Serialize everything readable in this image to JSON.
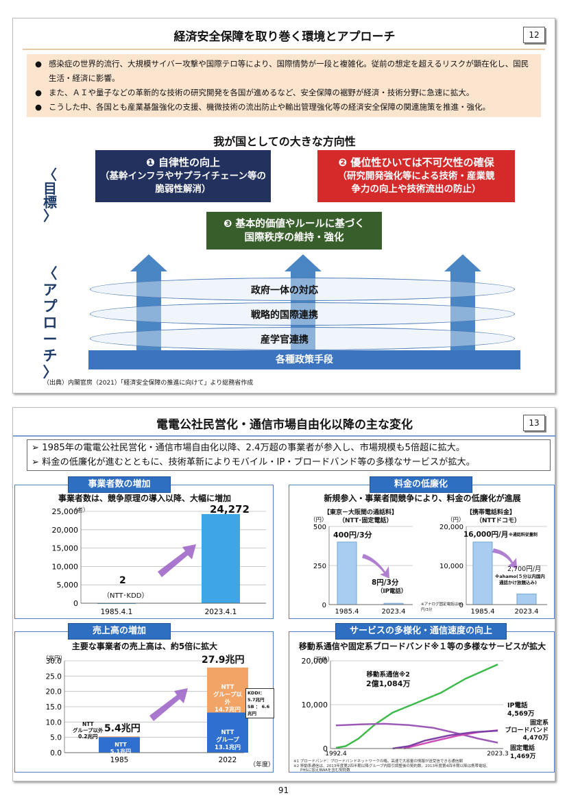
{
  "slide12": {
    "title": "経済安全保障を取り巻く環境とアプローチ",
    "page": "12",
    "bullets": [
      "感染症の世界的流行、大規模サイバー攻撃や国際テロ等により、国際情勢が一段と複雑化。従前の想定を超えるリスクが顕在化し、国民生活・経済に影響。",
      "また、ＡＩや量子などの革新的な技術の研究開発を各国が進めるなど、安全保障の裾野が経済・技術分野に急速に拡大。",
      "こうした中、各国とも産業基盤強化の支援、機微技術の流出防止や輸出管理強化等の経済安全保障の関連施策を推進・強化。"
    ],
    "direction": "我が国としての大きな方向性",
    "goal_label": "〈目標〉",
    "approach_label": "〈アプローチ〉",
    "goal1": [
      "❶ 自律性の向上",
      "（基幹インフラやサプライチェーン等の",
      "脆弱性解消）"
    ],
    "goal2": [
      "❷ 優位性ひいては不可欠性の確保",
      "（研究開発強化等による技術・産業競",
      "争力の向上や技術流出の防止）"
    ],
    "goal3": [
      "❸ 基本的価値やルールに基づく",
      "国際秩序の維持・強化"
    ],
    "appr1": "政府一体の対応",
    "appr2": "戦略的国際連携",
    "appr3": "産学官連携",
    "base": "各種政策手段",
    "source": "（出典）内閣官房（2021）「経済安全保障の推進に向けて」より総務省作成",
    "colors": {
      "navy": "#22315e",
      "red": "#d42a2a",
      "green": "#385f2b",
      "blue": "#3d74c0"
    }
  },
  "slide13": {
    "title": "電電公社民営化・通信市場自由化以降の主な変化",
    "page": "13",
    "bullets": [
      "➢  1985年の電電公社民営化・通信市場自由化以降、2.4万超の事業者が参入し、市場規模も5倍超に拡大。",
      "➢  料金の低廉化が進むとともに、技術革新によりモバイル・IP・ブロードバンド等の多様なサービスが拡大。"
    ],
    "p1": {
      "head": "事業者数の増加",
      "sub": "事業者数は、競争原理の導入以降、大幅に増加",
      "unit": "（者）",
      "v1": "2",
      "v1note": "（NTT･KDD）",
      "v2": "24,272"
    },
    "p2": {
      "head": "料金の低廉化",
      "sub": "新規参入・事業者間競争により、料金の低廉化が進展",
      "c1title": "【東京－大阪間の通話料】",
      "c1sub": "（NTT･固定電話）",
      "c1unit": "（円）",
      "c1v1": "400円/3分",
      "c1v2": "8円/3分",
      "c1v2note": "（IP電話）",
      "c2title": "【携帯電話料金】",
      "c2sub": "（NTTドコモ）",
      "c2unit": "（円）",
      "c2v1": "16,000円/月",
      "c2v1note": "※通話料従量制",
      "c2v2": "2,700円/月",
      "c2v2note1": "※ahamo(５分以内国内",
      "c2v2note2": "通話かけ放題込み)",
      "note": "※アナログ固定電話は80円/3分"
    },
    "p3": {
      "head": "売上高の増加",
      "sub": "主要な事業者の売上高は、約5倍に拡大",
      "unit": "（兆円）",
      "total1": "5.4兆円",
      "total2": "27.9兆円",
      "n1a": "NTT",
      "n1b": "5.1兆円",
      "o1a": "NTT",
      "o1b": "グループ以外",
      "o1c": "0.2兆円",
      "n2a": "NTT",
      "n2b": "グループ",
      "n2c": "13.1兆円",
      "o2a": "NTT",
      "o2b": "グループ以外",
      "o2c": "14.7兆円",
      "kddi": "KDDI： 5.7兆円",
      "sb": "SB ： 6.6兆円",
      "year": "（年度）"
    },
    "p4": {
      "head": "サービスの多様化・通信速度の向上",
      "sub": "移動系通信や固定系ブロードバンド※１等の多様なサービスが拡大",
      "unit": "（万件）",
      "mobile": "移動系通信※2",
      "mobile2": "2億1,084万",
      "ip": "IP電話",
      "ip2": "4,569万",
      "bb": "固定系",
      "bb2": "ブロードバンド",
      "bb3": "4,470万",
      "fixed": "固定電話",
      "fixed2": "1,469万",
      "fn1": "※1 ブロードバンド：ブロードバンドネットワークの略。高速で大容量の情報が送受信できる通信網",
      "fn2": "※2 移動系通信は、2013年度第2四半期以降グループ内取引調整後の契約数。2013年度第4四半期以降は携帯電話、",
      "fn3": "PHSに加えBWAを含む契約数"
    },
    "page_footer": "91"
  },
  "chart_data": [
    {
      "type": "bar",
      "title": "事業者数の増加",
      "categories": [
        "1985.4.1",
        "2023.4.1"
      ],
      "values": [
        2,
        24272
      ],
      "ylim": [
        0,
        25000
      ],
      "yticks": [
        "25,000",
        "20,000",
        "15,000",
        "10,000",
        "5,000",
        "0"
      ],
      "ylabel": "（者）"
    },
    {
      "type": "bar",
      "title": "【東京－大阪間の通話料】",
      "categories": [
        "1985.4",
        "2023.4"
      ],
      "values": [
        400,
        8
      ],
      "ylim": [
        0,
        500
      ],
      "yticks": [
        "500",
        "250",
        "0"
      ],
      "ylabel": "（円）"
    },
    {
      "type": "bar",
      "title": "【携帯電話料金】",
      "categories": [
        "1985.4",
        "2023.4"
      ],
      "values": [
        16000,
        2700
      ],
      "ylim": [
        0,
        20000
      ],
      "yticks": [
        "20,000",
        "10,000",
        "0"
      ],
      "ylabel": "（円）"
    },
    {
      "type": "bar",
      "title": "売上高の増加",
      "categories": [
        "1985",
        "2022"
      ],
      "series": [
        {
          "name": "NTTグループ",
          "values": [
            5.1,
            13.1
          ]
        },
        {
          "name": "NTTグループ以外",
          "values": [
            0.2,
            14.7
          ]
        }
      ],
      "ylim": [
        0,
        30
      ],
      "yticks": [
        "30.0",
        "25.0",
        "20.0",
        "15.0",
        "10.0",
        "5.0",
        "0.0"
      ],
      "ylabel": "（兆円）"
    },
    {
      "type": "line",
      "title": "サービスの多様化・通信速度の向上",
      "x": [
        "1992.4",
        "2023.3"
      ],
      "ylim": [
        0,
        22000
      ],
      "yticks": [
        "20,000",
        "10,000",
        "0"
      ],
      "ylabel": "（万件）",
      "series": [
        {
          "name": "移動系通信",
          "values": [
            171,
            21084
          ]
        },
        {
          "name": "IP電話",
          "values": [
            0,
            4569
          ]
        },
        {
          "name": "固定系ブロードバンド",
          "values": [
            0,
            4470
          ]
        },
        {
          "name": "固定電話",
          "values": [
            5800,
            1469
          ]
        }
      ]
    }
  ]
}
